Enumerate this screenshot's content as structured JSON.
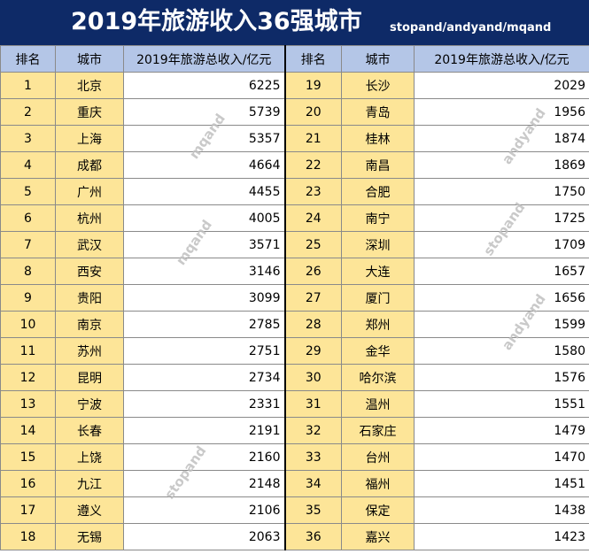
{
  "title": "2019年旅游收入36强城市",
  "credit": "stopand/andyand/mqand",
  "headers": {
    "rank": "排名",
    "city": "城市",
    "income": "2019年旅游总收入/亿元"
  },
  "left_rows": [
    {
      "rank": "1",
      "city": "北京",
      "income": "6225"
    },
    {
      "rank": "2",
      "city": "重庆",
      "income": "5739"
    },
    {
      "rank": "3",
      "city": "上海",
      "income": "5357"
    },
    {
      "rank": "4",
      "city": "成都",
      "income": "4664"
    },
    {
      "rank": "5",
      "city": "广州",
      "income": "4455"
    },
    {
      "rank": "6",
      "city": "杭州",
      "income": "4005"
    },
    {
      "rank": "7",
      "city": "武汉",
      "income": "3571"
    },
    {
      "rank": "8",
      "city": "西安",
      "income": "3146"
    },
    {
      "rank": "9",
      "city": "贵阳",
      "income": "3099"
    },
    {
      "rank": "10",
      "city": "南京",
      "income": "2785"
    },
    {
      "rank": "11",
      "city": "苏州",
      "income": "2751"
    },
    {
      "rank": "12",
      "city": "昆明",
      "income": "2734"
    },
    {
      "rank": "13",
      "city": "宁波",
      "income": "2331"
    },
    {
      "rank": "14",
      "city": "长春",
      "income": "2191"
    },
    {
      "rank": "15",
      "city": "上饶",
      "income": "2160"
    },
    {
      "rank": "16",
      "city": "九江",
      "income": "2148"
    },
    {
      "rank": "17",
      "city": "遵义",
      "income": "2106"
    },
    {
      "rank": "18",
      "city": "无锡",
      "income": "2063"
    }
  ],
  "right_rows": [
    {
      "rank": "19",
      "city": "长沙",
      "income": "2029"
    },
    {
      "rank": "20",
      "city": "青岛",
      "income": "1956"
    },
    {
      "rank": "21",
      "city": "桂林",
      "income": "1874"
    },
    {
      "rank": "22",
      "city": "南昌",
      "income": "1869"
    },
    {
      "rank": "23",
      "city": "合肥",
      "income": "1750"
    },
    {
      "rank": "24",
      "city": "南宁",
      "income": "1725"
    },
    {
      "rank": "25",
      "city": "深圳",
      "income": "1709"
    },
    {
      "rank": "26",
      "city": "大连",
      "income": "1657"
    },
    {
      "rank": "27",
      "city": "厦门",
      "income": "1656"
    },
    {
      "rank": "28",
      "city": "郑州",
      "income": "1599"
    },
    {
      "rank": "29",
      "city": "金华",
      "income": "1580"
    },
    {
      "rank": "30",
      "city": "哈尔滨",
      "income": "1576"
    },
    {
      "rank": "31",
      "city": "温州",
      "income": "1551"
    },
    {
      "rank": "32",
      "city": "石家庄",
      "income": "1479"
    },
    {
      "rank": "33",
      "city": "台州",
      "income": "1470"
    },
    {
      "rank": "34",
      "city": "福州",
      "income": "1451"
    },
    {
      "rank": "35",
      "city": "保定",
      "income": "1438"
    },
    {
      "rank": "36",
      "city": "嘉兴",
      "income": "1423"
    }
  ],
  "watermarks": [
    "mqand",
    "mqand",
    "stopand",
    "andyand",
    "stopand",
    "andyand"
  ],
  "colors": {
    "title_bg": "#0e2a67",
    "header_bg": "#b4c6e7",
    "rank_city_bg": "#fde598",
    "value_bg": "#ffffff"
  }
}
